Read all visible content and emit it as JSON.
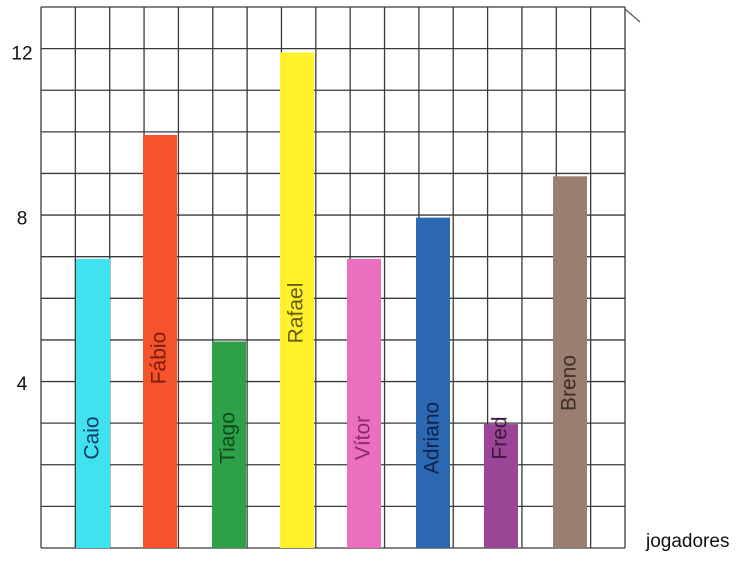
{
  "chart_data": {
    "type": "bar",
    "categories": [
      "Caio",
      "Fábio",
      "Tiago",
      "Rafael",
      "Vítor",
      "Adriano",
      "Fred",
      "Breno"
    ],
    "values": [
      7,
      10,
      5,
      12,
      7,
      8,
      3,
      9
    ],
    "colors": [
      "#3fe3f0",
      "#f4532b",
      "#2ea148",
      "#fff22a",
      "#ec6fbe",
      "#2b68b1",
      "#9a4596",
      "#9a7e6f"
    ],
    "label_colors": [
      "#163a68",
      "#7b1d0c",
      "#0f4a1c",
      "#6a5a12",
      "#8a2a6a",
      "#10224a",
      "#3f173e",
      "#3e2f28"
    ],
    "xlabel": "jogadores",
    "ylabel": "",
    "yticks": [
      4,
      8,
      12
    ],
    "ylim": [
      0,
      12
    ],
    "grid": true
  }
}
